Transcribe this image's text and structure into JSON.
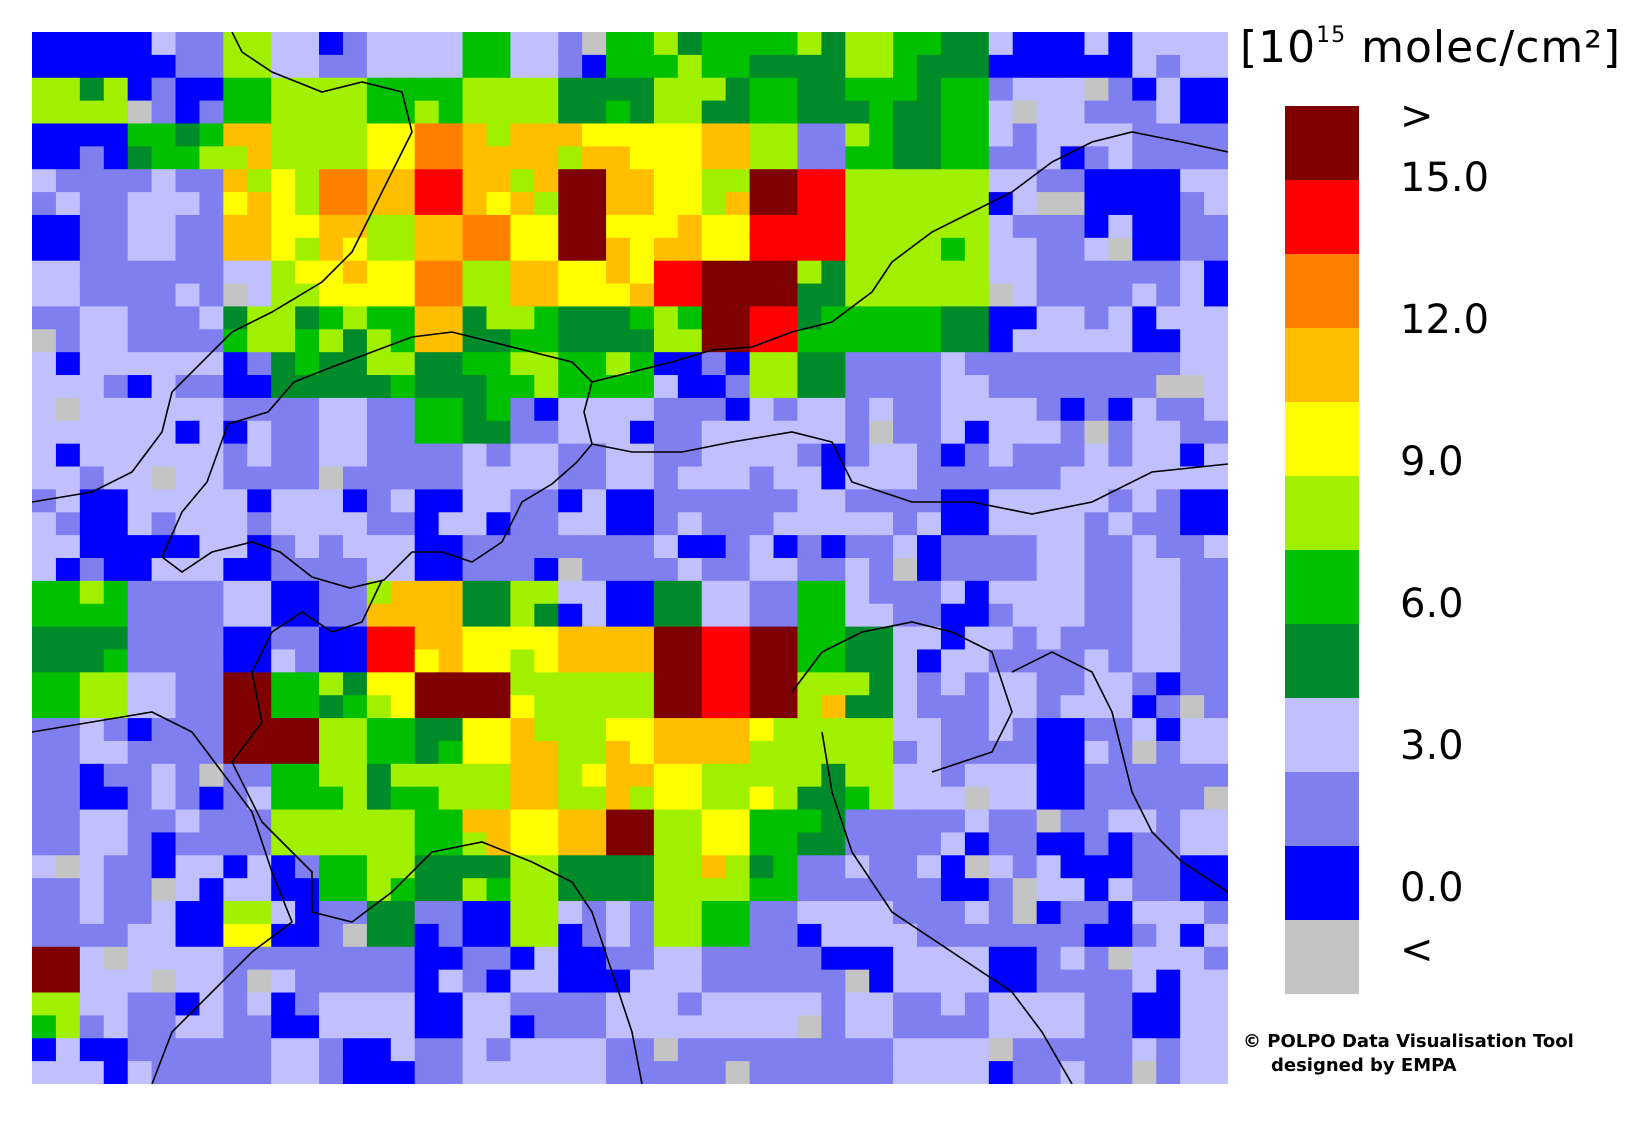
{
  "legend": {
    "unit_prefix": "[10",
    "unit_exp": "15",
    "unit_suffix": " molec/cm²]",
    "classes": [
      "#7f0000",
      "#ff0000",
      "#ff7f00",
      "#ffbf00",
      "#ffff00",
      "#a0f000",
      "#00c000",
      "#008b2a",
      "#c0c0ff",
      "#7f7fef",
      "#0000ff",
      "#c4c4c4"
    ],
    "labels": [
      ">",
      "15.0",
      "12.0",
      "9.0",
      "6.0",
      "3.0",
      "0.0",
      "<"
    ]
  },
  "credit": {
    "line1": "© POLPO Data Visualisation Tool",
    "line2": "designed by EMPA"
  },
  "map": {
    "grid_cols": 25,
    "grid_rows": 23,
    "cells": [
      "BBBBGBBBBGBBGGGGGGGGBBBBB",
      "GGBBGGGGGYGGGYGGGGGGBBBBB",
      "BBGGYYYYOYOYYYOYBGGGBBBBB",
      "BBBBYYOORYYRYYYRRGGGBBBBB",
      "BBBBYYYYYOYRYYYRRGGGBBBBB",
      "BBBBBYYYOYYYYRRRGGGGBBBBB",
      "BBBBGGGGYGGGGGRRGGGGBBBBB",
      "BBBBBGGGGGGGGBBGGBBBBBBBB",
      "BBBBBBBBGGBBBBBBBBBBBBBBB",
      "BBBBBBBBBBBBBBBBBBBBBBBBB",
      "BBBBBBBBBBBBBBBBBBBBBBBBB",
      "BBBBBBBBBBBBBBBBBBBBBBBBB",
      "GGBBBBBYOGGBBGBBGBBBBBBBB",
      "GGBBBBBRYYYYORRRGGBBBBBBB",
      "GGBBRGGYRRYYYRRRYGBBBBBBB",
      "BBBBRRGGGYYYYOOYYGBBBBBBB",
      "BBBBBGGGGYYYYYYYGGBBBBBBB",
      "BBBBBGGGGYYYRYYGGBBBBBBBB",
      "BBBBBBGGGGYGGYYGBBBBBBBBB",
      "BBBBYBBGBBGBBGGBBBBBBBBBB",
      "RBBBBBBBBBBBBBBBBBBBBBBBB",
      "GBBBBBBBBBBBBBBBBBBBBBBBB",
      "BBBBBBBBBBBBBBBBBBBBBBBBB"
    ]
  }
}
